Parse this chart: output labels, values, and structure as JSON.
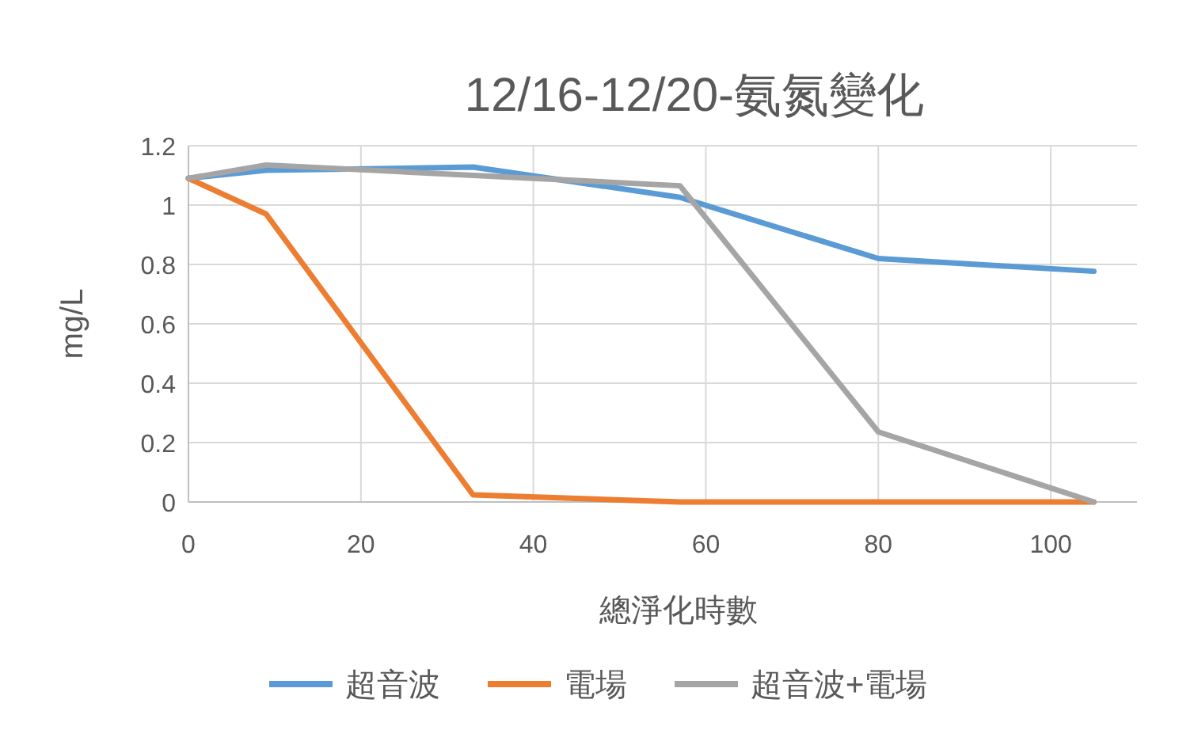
{
  "chart_data": {
    "type": "line",
    "title": "12/16-12/20-氨氮變化",
    "xlabel": "總淨化時數",
    "ylabel": "mg/L",
    "x": [
      0,
      9,
      33,
      57,
      80,
      105
    ],
    "series": [
      {
        "name": "超音波",
        "color": "#5b9bd5",
        "values": [
          1.09,
          1.117,
          1.128,
          1.026,
          0.82,
          0.777
        ]
      },
      {
        "name": "電場",
        "color": "#ed7d31",
        "values": [
          1.09,
          0.97,
          0.024,
          0,
          0,
          0
        ]
      },
      {
        "name": "超音波+電場",
        "color": "#a5a5a5",
        "values": [
          1.09,
          1.135,
          1.1,
          1.065,
          0.236,
          0
        ]
      }
    ],
    "xlim": [
      0,
      110
    ],
    "xticks": [
      0,
      20,
      40,
      60,
      80,
      100
    ],
    "ylim": [
      0,
      1.2
    ],
    "yticks": [
      0,
      0.2,
      0.4,
      0.6,
      0.8,
      1,
      1.2
    ],
    "grid": true,
    "legend": "bottom",
    "marker": "none",
    "line_style": "solid"
  }
}
